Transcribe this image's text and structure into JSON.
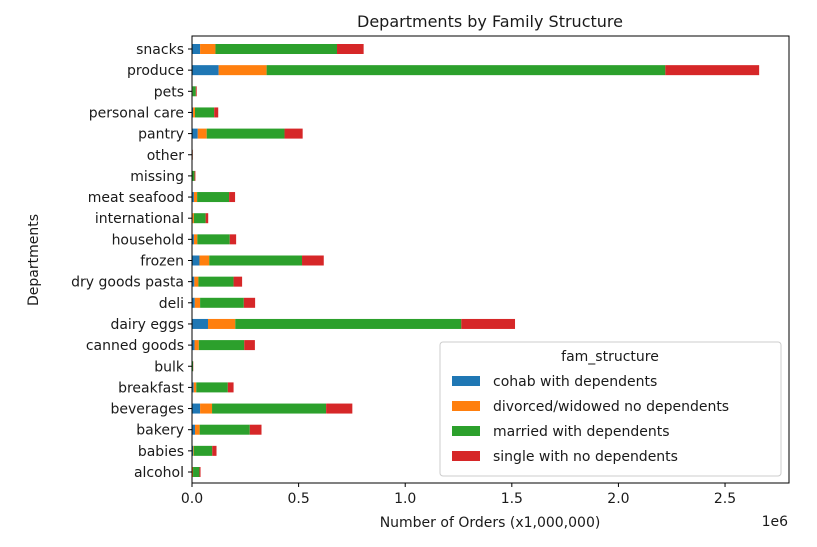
{
  "chart_data": {
    "type": "bar",
    "orientation": "horizontal",
    "stacked": true,
    "title": "Departments by Family Structure",
    "xlabel": "Number of Orders (x1,000,000)",
    "ylabel": "Departments",
    "x_offset_label": "1e6",
    "xlim": [
      0,
      2800000
    ],
    "x_ticks": [
      0,
      500000,
      1000000,
      1500000,
      2000000,
      2500000
    ],
    "x_tick_labels": [
      "0.0",
      "0.5",
      "1.0",
      "1.5",
      "2.0",
      "2.5"
    ],
    "grid": false,
    "legend_title": "fam_structure",
    "legend_position": "lower-right",
    "categories": [
      "alcohol",
      "babies",
      "bakery",
      "beverages",
      "breakfast",
      "bulk",
      "canned goods",
      "dairy eggs",
      "deli",
      "dry goods pasta",
      "frozen",
      "household",
      "international",
      "meat seafood",
      "missing",
      "other",
      "pantry",
      "personal care",
      "pets",
      "produce",
      "snacks"
    ],
    "series": [
      {
        "name": "cohab with dependents",
        "color": "#1f77b4",
        "values": [
          2000,
          5000,
          14000,
          38000,
          8000,
          1000,
          12000,
          75000,
          13000,
          11000,
          35000,
          9000,
          3000,
          9000,
          1000,
          500,
          27000,
          5000,
          1000,
          125000,
          38000
        ]
      },
      {
        "name": "divorced/widowed no dependents",
        "color": "#ff7f0e",
        "values": [
          3000,
          3000,
          22000,
          56000,
          12000,
          1000,
          20000,
          128000,
          25000,
          19000,
          46000,
          16000,
          6000,
          15000,
          1000,
          500,
          42000,
          9000,
          2000,
          225000,
          72000
        ]
      },
      {
        "name": "married with dependents",
        "color": "#2ca02c",
        "values": [
          30000,
          87000,
          235000,
          535000,
          148000,
          3000,
          213000,
          1060000,
          205000,
          165000,
          435000,
          152000,
          55000,
          150000,
          10000,
          2000,
          365000,
          90000,
          15000,
          1870000,
          570000
        ]
      },
      {
        "name": "single with no dependents",
        "color": "#d62728",
        "values": [
          5000,
          20000,
          55000,
          123000,
          27000,
          1000,
          50000,
          252000,
          53000,
          40000,
          102000,
          30000,
          12000,
          28000,
          4000,
          1000,
          85000,
          19000,
          4000,
          440000,
          125000
        ]
      }
    ]
  }
}
